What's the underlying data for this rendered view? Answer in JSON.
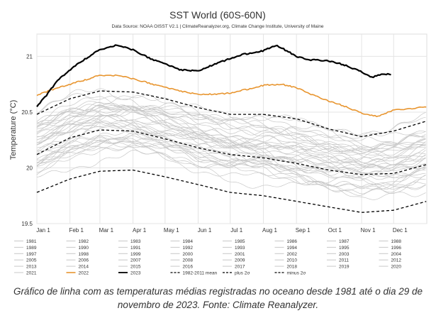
{
  "chart_data": {
    "type": "line",
    "title": "SST World (60S-60N)",
    "subtitle": "Data Source: NOAA OISST V2.1 | ClimateReanalyzer.org, Climate Change Institute, University of Maine",
    "ylabel": "Temperature (°C)",
    "xlabel": "",
    "ylim": [
      19.5,
      21.2
    ],
    "yticks": [
      19.5,
      20,
      20.5,
      21
    ],
    "yticklabels": [
      "19.5",
      "20",
      "20.5",
      "21"
    ],
    "x_unit": "day of year",
    "xlim": [
      1,
      366
    ],
    "xticks": [
      1,
      32,
      60,
      91,
      121,
      152,
      182,
      213,
      244,
      274,
      305,
      335
    ],
    "xticklabels": [
      "Jan 1",
      "Feb 1",
      "Mar 1",
      "Apr 1",
      "May 1",
      "Jun 1",
      "Jul 1",
      "Aug 1",
      "Sep 1",
      "Oct 1",
      "Nov 1",
      "Dec 1"
    ],
    "grid": true,
    "legend_position": "bottom",
    "legend_columns": 8,
    "colors": {
      "past_years": "#c8c8c8",
      "year_2022": "#e8952f",
      "year_2023": "#000000",
      "mean": "#000000",
      "plus_2sigma": "#000000",
      "minus_2sigma": "#000000"
    },
    "series_keys": [
      {
        "name": "1981"
      },
      {
        "name": "1982"
      },
      {
        "name": "1983"
      },
      {
        "name": "1984"
      },
      {
        "name": "1985"
      },
      {
        "name": "1986"
      },
      {
        "name": "1987"
      },
      {
        "name": "1988"
      },
      {
        "name": "1989"
      },
      {
        "name": "1990"
      },
      {
        "name": "1991"
      },
      {
        "name": "1992"
      },
      {
        "name": "1993"
      },
      {
        "name": "1994"
      },
      {
        "name": "1995"
      },
      {
        "name": "1996"
      },
      {
        "name": "1997"
      },
      {
        "name": "1998"
      },
      {
        "name": "1999"
      },
      {
        "name": "2000"
      },
      {
        "name": "2001"
      },
      {
        "name": "2002"
      },
      {
        "name": "2003"
      },
      {
        "name": "2004"
      },
      {
        "name": "2005"
      },
      {
        "name": "2006"
      },
      {
        "name": "2007"
      },
      {
        "name": "2008"
      },
      {
        "name": "2009"
      },
      {
        "name": "2010"
      },
      {
        "name": "2011"
      },
      {
        "name": "2012"
      },
      {
        "name": "2013"
      },
      {
        "name": "2014"
      },
      {
        "name": "2015"
      },
      {
        "name": "2016"
      },
      {
        "name": "2017"
      },
      {
        "name": "2018"
      },
      {
        "name": "2019"
      },
      {
        "name": "2020"
      },
      {
        "name": "2021"
      },
      {
        "name": "2022",
        "style": "highlight-orange"
      },
      {
        "name": "2023",
        "style": "highlight-black"
      },
      {
        "name": "1982-2011 mean",
        "style": "dashed"
      },
      {
        "name": "plus 2σ",
        "style": "dashed"
      },
      {
        "name": "minus 2σ",
        "style": "dashed"
      }
    ],
    "series": [
      {
        "name": "2023",
        "x": [
          1,
          10,
          20,
          32,
          45,
          60,
          75,
          91,
          105,
          121,
          135,
          152,
          165,
          182,
          195,
          213,
          225,
          235,
          244,
          255,
          274,
          290,
          305,
          315,
          320,
          325,
          333
        ],
        "values": [
          20.55,
          20.65,
          20.78,
          20.88,
          20.97,
          21.06,
          21.1,
          21.06,
          20.99,
          20.93,
          20.88,
          20.87,
          20.92,
          20.98,
          21.02,
          21.05,
          21.1,
          21.05,
          21.0,
          20.97,
          20.96,
          20.92,
          20.86,
          20.81,
          20.83,
          20.84,
          20.84
        ]
      },
      {
        "name": "2022",
        "x": [
          1,
          15,
          32,
          50,
          60,
          75,
          91,
          110,
          121,
          140,
          152,
          170,
          182,
          200,
          213,
          230,
          244,
          260,
          274,
          290,
          305,
          320,
          335,
          350,
          366
        ],
        "values": [
          20.65,
          20.7,
          20.75,
          20.8,
          20.83,
          20.83,
          20.8,
          20.75,
          20.72,
          20.68,
          20.66,
          20.66,
          20.67,
          20.71,
          20.74,
          20.75,
          20.72,
          20.65,
          20.6,
          20.55,
          20.49,
          20.46,
          20.52,
          20.53,
          20.55
        ]
      },
      {
        "name": "1982-2011 mean",
        "x": [
          1,
          32,
          60,
          91,
          121,
          152,
          182,
          213,
          244,
          274,
          305,
          335,
          366
        ],
        "values": [
          20.12,
          20.27,
          20.34,
          20.33,
          20.26,
          20.18,
          20.12,
          20.09,
          20.04,
          19.98,
          19.94,
          19.95,
          20.03
        ]
      },
      {
        "name": "plus 2σ",
        "x": [
          1,
          32,
          60,
          91,
          121,
          152,
          182,
          213,
          244,
          274,
          305,
          335,
          366
        ],
        "values": [
          20.48,
          20.62,
          20.69,
          20.68,
          20.62,
          20.54,
          20.48,
          20.48,
          20.44,
          20.35,
          20.28,
          20.33,
          20.42
        ]
      },
      {
        "name": "minus 2σ",
        "x": [
          1,
          32,
          60,
          91,
          121,
          152,
          182,
          213,
          244,
          274,
          305,
          335,
          366
        ],
        "values": [
          19.78,
          19.9,
          19.97,
          19.98,
          19.92,
          19.85,
          19.78,
          19.75,
          19.7,
          19.65,
          19.6,
          19.62,
          19.7
        ]
      }
    ],
    "past_years_band": {
      "x": [
        1,
        32,
        60,
        91,
        121,
        152,
        182,
        213,
        244,
        274,
        305,
        335,
        366
      ],
      "mean": [
        20.15,
        20.28,
        20.35,
        20.34,
        20.28,
        20.2,
        20.14,
        20.11,
        20.06,
        20.01,
        19.97,
        19.98,
        20.06
      ]
    }
  },
  "caption": "Gráfico de linha com as temperaturas médias registradas no oceano desde 1981 até o dia 29 de novembro de 2023. Fonte: Climate Reanalyzer."
}
